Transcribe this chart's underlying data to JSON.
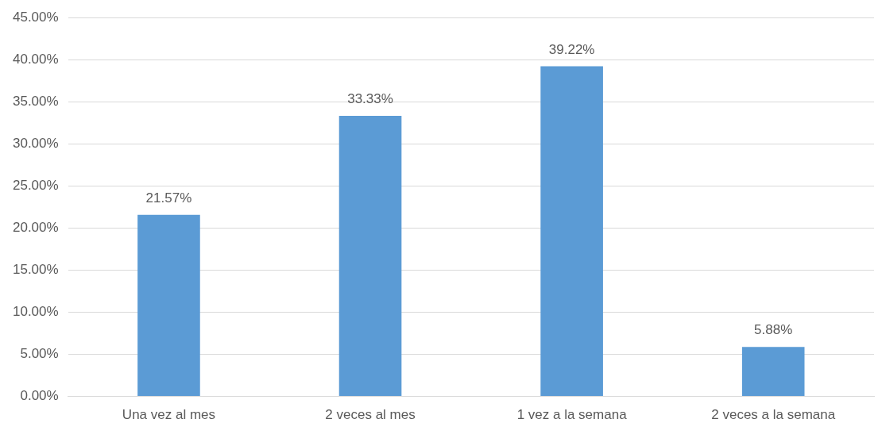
{
  "chart_data": {
    "type": "bar",
    "categories": [
      "Una vez al mes",
      "2 veces al mes",
      "1 vez a la semana",
      "2 veces a la semana"
    ],
    "values": [
      21.57,
      33.33,
      39.22,
      5.88
    ],
    "value_labels": [
      "21.57%",
      "33.33%",
      "39.22%",
      "5.88%"
    ],
    "color": "#5b9bd5",
    "ylim": [
      0,
      45
    ],
    "yticks": [
      {
        "value": 0,
        "label": "0.00%"
      },
      {
        "value": 5,
        "label": "5.00%"
      },
      {
        "value": 10,
        "label": "10.00%"
      },
      {
        "value": 15,
        "label": "15.00%"
      },
      {
        "value": 20,
        "label": "20.00%"
      },
      {
        "value": 25,
        "label": "25.00%"
      },
      {
        "value": 30,
        "label": "30.00%"
      },
      {
        "value": 35,
        "label": "35.00%"
      },
      {
        "value": 40,
        "label": "40.00%"
      },
      {
        "value": 45,
        "label": "45.00%"
      }
    ],
    "grid": "y"
  }
}
